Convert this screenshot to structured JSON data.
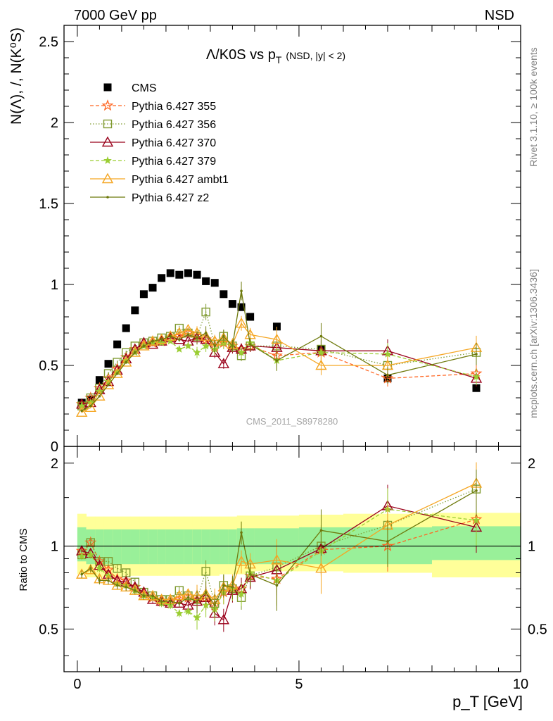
{
  "header": {
    "left": "7000 GeV pp",
    "right": "NSD"
  },
  "side_labels": {
    "rivet": "Rivet 3.1.10, ≥ 100k events",
    "mcplots": "mcplots.cern.ch [arXiv:1306.3436]"
  },
  "watermark": "CMS_2011_S8978280",
  "chart_data": [
    {
      "type": "scatter",
      "panel": "main",
      "title": "Λ/K0S vs p_T (NSD, |y| < 2)",
      "title_main": "Λ/K0S vs p",
      "title_sub": "T",
      "title_extra": "(NSD, |y| < 2)",
      "ylabel": "N(Λ), /, N(K⁰S)",
      "xlabel": "p_T [GeV]",
      "xlim": [
        -0.3,
        10
      ],
      "ylim": [
        0,
        2.6
      ],
      "legend_position": "top-left",
      "xticks": [
        0,
        5,
        10
      ],
      "yticks": [
        0,
        0.5,
        1,
        1.5,
        2,
        2.5
      ],
      "ytick_labels": [
        "0",
        "0.5",
        "1",
        "1.5",
        "2",
        "2.5"
      ],
      "series": [
        {
          "name": "CMS",
          "color": "#000000",
          "style": "data",
          "marker": "filled-square",
          "x": [
            0.1,
            0.3,
            0.5,
            0.7,
            0.9,
            1.1,
            1.3,
            1.5,
            1.7,
            1.9,
            2.1,
            2.3,
            2.5,
            2.7,
            2.9,
            3.1,
            3.3,
            3.5,
            3.7,
            3.9,
            4.5,
            5.5,
            7.0,
            9.0
          ],
          "y": [
            0.27,
            0.29,
            0.41,
            0.51,
            0.63,
            0.73,
            0.84,
            0.94,
            0.98,
            1.04,
            1.07,
            1.06,
            1.07,
            1.06,
            1.02,
            1.01,
            0.94,
            0.88,
            0.86,
            0.8,
            0.74,
            0.6,
            0.42,
            0.36
          ]
        },
        {
          "name": "Pythia 6.427 355",
          "color": "#ff6622",
          "style": "dashed",
          "marker": "star",
          "x": [
            0.1,
            0.3,
            0.5,
            0.7,
            0.9,
            1.1,
            1.3,
            1.5,
            1.7,
            1.9,
            2.1,
            2.3,
            2.5,
            2.7,
            2.9,
            3.1,
            3.3,
            3.5,
            3.7,
            3.9,
            4.5,
            5.5,
            7.0,
            9.0
          ],
          "y": [
            0.26,
            0.3,
            0.36,
            0.42,
            0.48,
            0.55,
            0.6,
            0.63,
            0.64,
            0.65,
            0.67,
            0.68,
            0.7,
            0.68,
            0.66,
            0.62,
            0.64,
            0.62,
            0.6,
            0.62,
            0.56,
            0.58,
            0.42,
            0.45
          ]
        },
        {
          "name": "Pythia 6.427 356",
          "color": "#7f9a2f",
          "style": "dotted",
          "marker": "open-square",
          "x": [
            0.1,
            0.3,
            0.5,
            0.7,
            0.9,
            1.1,
            1.3,
            1.5,
            1.7,
            1.9,
            2.1,
            2.3,
            2.5,
            2.7,
            2.9,
            3.1,
            3.3,
            3.5,
            3.7,
            3.9,
            4.5,
            5.5,
            7.0,
            9.0
          ],
          "y": [
            0.25,
            0.3,
            0.36,
            0.45,
            0.52,
            0.58,
            0.62,
            0.64,
            0.65,
            0.67,
            0.68,
            0.73,
            0.7,
            0.68,
            0.83,
            0.63,
            0.68,
            0.62,
            0.56,
            0.62,
            0.62,
            0.6,
            0.5,
            0.58
          ]
        },
        {
          "name": "Pythia 6.427 370",
          "color": "#99001a",
          "style": "solid",
          "marker": "open-triangle",
          "x": [
            0.1,
            0.3,
            0.5,
            0.7,
            0.9,
            1.1,
            1.3,
            1.5,
            1.7,
            1.9,
            2.1,
            2.3,
            2.5,
            2.7,
            2.9,
            3.1,
            3.3,
            3.5,
            3.7,
            3.9,
            4.5,
            5.5,
            7.0,
            9.0
          ],
          "y": [
            0.26,
            0.27,
            0.35,
            0.4,
            0.47,
            0.54,
            0.6,
            0.64,
            0.63,
            0.65,
            0.67,
            0.66,
            0.65,
            0.67,
            0.66,
            0.58,
            0.51,
            0.61,
            0.6,
            0.62,
            0.61,
            0.59,
            0.59,
            0.42
          ]
        },
        {
          "name": "Pythia 6.427 379",
          "color": "#9acd32",
          "style": "dashed",
          "marker": "small-star",
          "x": [
            0.1,
            0.3,
            0.5,
            0.7,
            0.9,
            1.1,
            1.3,
            1.5,
            1.7,
            1.9,
            2.1,
            2.3,
            2.5,
            2.7,
            2.9,
            3.1,
            3.3,
            3.5,
            3.7,
            3.9,
            4.5,
            5.5,
            7.0,
            9.0
          ],
          "y": [
            0.25,
            0.27,
            0.34,
            0.4,
            0.46,
            0.53,
            0.58,
            0.62,
            0.64,
            0.64,
            0.65,
            0.6,
            0.62,
            0.58,
            0.62,
            0.6,
            0.64,
            0.62,
            0.58,
            0.64,
            0.53,
            0.58,
            0.57,
            0.43
          ]
        },
        {
          "name": "Pythia 6.427 ambt1",
          "color": "#f5a623",
          "style": "solid",
          "marker": "open-triangle",
          "x": [
            0.1,
            0.3,
            0.5,
            0.7,
            0.9,
            1.1,
            1.3,
            1.5,
            1.7,
            1.9,
            2.1,
            2.3,
            2.5,
            2.7,
            2.9,
            3.1,
            3.3,
            3.5,
            3.7,
            3.9,
            4.5,
            5.5,
            7.0,
            9.0
          ],
          "y": [
            0.21,
            0.24,
            0.31,
            0.38,
            0.45,
            0.52,
            0.58,
            0.62,
            0.65,
            0.66,
            0.68,
            0.7,
            0.72,
            0.7,
            0.68,
            0.65,
            0.67,
            0.63,
            0.76,
            0.69,
            0.66,
            0.5,
            0.5,
            0.61
          ]
        },
        {
          "name": "Pythia 6.427 z2",
          "color": "#6e7a0c",
          "style": "solid",
          "marker": "dot",
          "x": [
            0.1,
            0.3,
            0.5,
            0.7,
            0.9,
            1.1,
            1.3,
            1.5,
            1.7,
            1.9,
            2.1,
            2.3,
            2.5,
            2.7,
            2.9,
            3.1,
            3.3,
            3.5,
            3.7,
            3.9,
            4.5,
            5.5,
            7.0,
            9.0
          ],
          "y": [
            0.22,
            0.25,
            0.31,
            0.38,
            0.45,
            0.52,
            0.58,
            0.62,
            0.65,
            0.66,
            0.68,
            0.66,
            0.69,
            0.67,
            0.7,
            0.62,
            0.68,
            0.62,
            0.96,
            0.63,
            0.53,
            0.68,
            0.44,
            0.57
          ]
        }
      ]
    },
    {
      "type": "scatter",
      "panel": "ratio",
      "ylabel": "Ratio to CMS",
      "reference_line": 1,
      "xlim": [
        -0.3,
        10
      ],
      "ylim": [
        0.35,
        2.3
      ],
      "yscale": "log",
      "yticks": [
        0.5,
        1,
        2
      ],
      "ytick_labels": [
        "0.5",
        "1",
        "2"
      ],
      "xticks": [
        0,
        5,
        10
      ],
      "xtick_labels": [
        "0",
        "5",
        "10"
      ],
      "bands": {
        "edges": [
          0.0,
          0.2,
          0.4,
          0.6,
          0.8,
          1.0,
          1.2,
          1.4,
          1.6,
          1.8,
          2.0,
          2.2,
          2.4,
          2.6,
          2.8,
          3.0,
          3.2,
          3.4,
          3.6,
          3.8,
          4.0,
          5.0,
          6.0,
          8.0,
          10.0
        ],
        "stat_low": [
          0.88,
          0.86,
          0.86,
          0.86,
          0.86,
          0.86,
          0.86,
          0.86,
          0.86,
          0.86,
          0.86,
          0.86,
          0.86,
          0.86,
          0.86,
          0.86,
          0.86,
          0.86,
          0.86,
          0.86,
          0.86,
          0.86,
          0.86,
          0.89
        ],
        "stat_high": [
          1.17,
          1.15,
          1.15,
          1.15,
          1.15,
          1.15,
          1.15,
          1.15,
          1.15,
          1.15,
          1.15,
          1.15,
          1.15,
          1.15,
          1.15,
          1.15,
          1.15,
          1.15,
          1.16,
          1.16,
          1.16,
          1.17,
          1.17,
          1.18
        ],
        "syst_low": [
          0.79,
          0.77,
          0.77,
          0.77,
          0.77,
          0.78,
          0.78,
          0.78,
          0.78,
          0.78,
          0.78,
          0.78,
          0.78,
          0.78,
          0.78,
          0.78,
          0.79,
          0.79,
          0.79,
          0.8,
          0.81,
          0.81,
          0.8,
          0.77
        ],
        "syst_high": [
          1.31,
          1.28,
          1.28,
          1.28,
          1.28,
          1.28,
          1.28,
          1.28,
          1.28,
          1.28,
          1.28,
          1.28,
          1.28,
          1.28,
          1.28,
          1.28,
          1.28,
          1.28,
          1.29,
          1.29,
          1.29,
          1.3,
          1.31,
          1.32
        ],
        "stat_color": "#99f099",
        "syst_color": "#ffff99"
      },
      "series": [
        {
          "name": "Pythia 6.427 355",
          "color": "#ff6622",
          "style": "dashed",
          "marker": "star",
          "x": [
            0.1,
            0.3,
            0.5,
            0.7,
            0.9,
            1.1,
            1.3,
            1.5,
            1.7,
            1.9,
            2.1,
            2.3,
            2.5,
            2.7,
            2.9,
            3.1,
            3.3,
            3.5,
            3.7,
            3.9,
            4.5,
            5.5,
            7.0,
            9.0
          ],
          "y": [
            0.96,
            1.03,
            0.88,
            0.82,
            0.76,
            0.75,
            0.71,
            0.67,
            0.65,
            0.63,
            0.63,
            0.64,
            0.65,
            0.64,
            0.65,
            0.61,
            0.68,
            0.7,
            0.7,
            0.78,
            0.76,
            0.97,
            1.0,
            1.25
          ]
        },
        {
          "name": "Pythia 6.427 356",
          "color": "#7f9a2f",
          "style": "dotted",
          "marker": "open-square",
          "x": [
            0.1,
            0.3,
            0.5,
            0.7,
            0.9,
            1.1,
            1.3,
            1.5,
            1.7,
            1.9,
            2.1,
            2.3,
            2.5,
            2.7,
            2.9,
            3.1,
            3.3,
            3.5,
            3.7,
            3.9,
            4.5,
            5.5,
            7.0,
            9.0
          ],
          "y": [
            0.93,
            1.03,
            0.88,
            0.88,
            0.83,
            0.8,
            0.74,
            0.68,
            0.66,
            0.64,
            0.64,
            0.69,
            0.66,
            0.64,
            0.81,
            0.62,
            0.72,
            0.7,
            0.65,
            0.78,
            0.84,
            1.0,
            1.19,
            1.61
          ]
        },
        {
          "name": "Pythia 6.427 370",
          "color": "#99001a",
          "style": "solid",
          "marker": "open-triangle",
          "x": [
            0.1,
            0.3,
            0.5,
            0.7,
            0.9,
            1.1,
            1.3,
            1.5,
            1.7,
            1.9,
            2.1,
            2.3,
            2.5,
            2.7,
            2.9,
            3.1,
            3.3,
            3.5,
            3.7,
            3.9,
            4.5,
            5.5,
            7.0,
            9.0
          ],
          "y": [
            0.96,
            0.94,
            0.85,
            0.79,
            0.75,
            0.74,
            0.71,
            0.68,
            0.64,
            0.63,
            0.62,
            0.62,
            0.61,
            0.63,
            0.65,
            0.57,
            0.54,
            0.69,
            0.7,
            0.77,
            0.82,
            0.98,
            1.4,
            1.17
          ]
        },
        {
          "name": "Pythia 6.427 379",
          "color": "#9acd32",
          "style": "dashed",
          "marker": "small-star",
          "x": [
            0.1,
            0.3,
            0.5,
            0.7,
            0.9,
            1.1,
            1.3,
            1.5,
            1.7,
            1.9,
            2.1,
            2.3,
            2.5,
            2.7,
            2.9,
            3.1,
            3.3,
            3.5,
            3.7,
            3.9,
            4.5,
            5.5,
            7.0,
            9.0
          ],
          "y": [
            0.92,
            0.93,
            0.83,
            0.78,
            0.73,
            0.72,
            0.69,
            0.66,
            0.65,
            0.62,
            0.61,
            0.57,
            0.58,
            0.55,
            0.61,
            0.59,
            0.68,
            0.7,
            0.67,
            0.8,
            0.75,
            0.96,
            1.36,
            1.24
          ]
        },
        {
          "name": "Pythia 6.427 ambt1",
          "color": "#f5a623",
          "style": "solid",
          "marker": "open-triangle",
          "x": [
            0.1,
            0.3,
            0.5,
            0.7,
            0.9,
            1.1,
            1.3,
            1.5,
            1.7,
            1.9,
            2.1,
            2.3,
            2.5,
            2.7,
            2.9,
            3.1,
            3.3,
            3.5,
            3.7,
            3.9,
            4.5,
            5.5,
            7.0,
            9.0
          ],
          "y": [
            0.79,
            0.82,
            0.76,
            0.75,
            0.72,
            0.71,
            0.69,
            0.66,
            0.66,
            0.64,
            0.64,
            0.66,
            0.67,
            0.66,
            0.67,
            0.64,
            0.71,
            0.72,
            0.88,
            0.86,
            0.89,
            0.83,
            1.19,
            1.69
          ]
        },
        {
          "name": "Pythia 6.427 z2",
          "color": "#6e7a0c",
          "style": "solid",
          "marker": "dot",
          "x": [
            0.1,
            0.3,
            0.5,
            0.7,
            0.9,
            1.1,
            1.3,
            1.5,
            1.7,
            1.9,
            2.1,
            2.3,
            2.5,
            2.7,
            2.9,
            3.1,
            3.3,
            3.5,
            3.7,
            3.9,
            4.5,
            5.5,
            7.0,
            9.0
          ],
          "y": [
            0.79,
            0.83,
            0.75,
            0.75,
            0.72,
            0.71,
            0.69,
            0.66,
            0.66,
            0.63,
            0.63,
            0.62,
            0.65,
            0.63,
            0.68,
            0.61,
            0.72,
            0.71,
            1.12,
            0.79,
            0.72,
            1.14,
            1.04,
            1.59
          ]
        }
      ]
    }
  ]
}
